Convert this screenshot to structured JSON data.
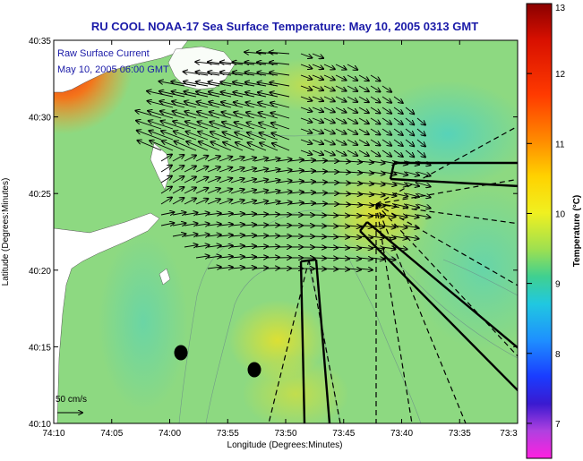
{
  "title": "RU COOL  NOAA-17  Sea Surface Temperature:  May 10, 2005 0313 GMT",
  "annotation": {
    "line1": "Raw Surface Current",
    "line2": "May 10, 2005 06:00 GMT"
  },
  "scale_label": "50 cm/s",
  "axes": {
    "xlabel": "Longitude (Degrees:Minutes)",
    "ylabel": "Latitude (Degrees:Minutes)",
    "xticks": [
      "74:10",
      "74:05",
      "74:00",
      "73:55",
      "73:50",
      "73:45",
      "73:40",
      "73:35",
      "73:3"
    ],
    "yticks": [
      "40:35",
      "40:30",
      "40:25",
      "40:20",
      "40:15",
      "40:10"
    ]
  },
  "colorbar": {
    "label": "Temperature (°C)",
    "ticks": [
      "13",
      "12",
      "11",
      "10",
      "9",
      "8",
      "7"
    ],
    "range": [
      6.5,
      13
    ]
  },
  "colors": {
    "title": "#1a1aa8",
    "land": "#ffffff"
  }
}
